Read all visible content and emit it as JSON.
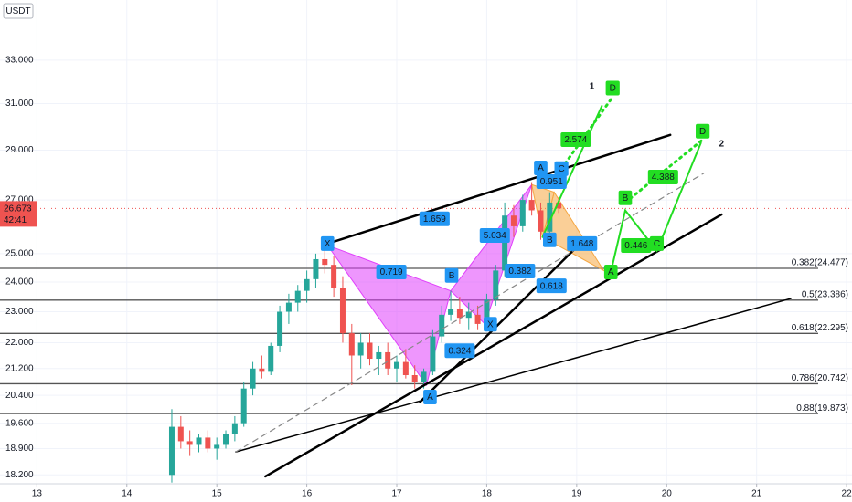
{
  "chart_data": {
    "type": "candlestick",
    "quote": "USDT",
    "log_scale": true,
    "grid": true,
    "up_color": "#26a69a",
    "down_color": "#ef5350",
    "x": [
      14.5,
      14.6,
      14.7,
      14.8,
      14.9,
      15.0,
      15.1,
      15.2,
      15.3,
      15.4,
      15.5,
      15.6,
      15.7,
      15.8,
      15.9,
      16.0,
      16.1,
      16.2,
      16.3,
      16.4,
      16.5,
      16.6,
      16.7,
      16.8,
      16.9,
      17.0,
      17.1,
      17.2,
      17.3,
      17.4,
      17.5,
      17.6,
      17.7,
      17.8,
      17.9,
      18.0,
      18.1,
      18.2,
      18.3,
      18.4,
      18.5,
      18.6,
      18.7,
      18.8
    ],
    "open": [
      18.2,
      19.5,
      19.1,
      19.0,
      19.2,
      18.9,
      19.0,
      19.3,
      19.6,
      20.6,
      21.2,
      21.1,
      21.9,
      23.0,
      23.3,
      23.7,
      24.1,
      24.8,
      24.6,
      23.8,
      22.3,
      21.6,
      22.0,
      21.5,
      21.7,
      21.2,
      21.4,
      21.0,
      20.8,
      21.1,
      22.2,
      22.9,
      23.1,
      22.8,
      22.9,
      22.6,
      23.4,
      24.4,
      26.4,
      26.0,
      27.0,
      26.6,
      25.8,
      26.9
    ],
    "high": [
      20.0,
      19.8,
      19.4,
      19.3,
      19.4,
      19.2,
      19.4,
      19.8,
      20.8,
      21.4,
      21.6,
      22.0,
      23.2,
      23.6,
      23.9,
      24.4,
      25.0,
      25.4,
      24.9,
      24.2,
      22.6,
      22.3,
      22.3,
      21.9,
      22.0,
      21.6,
      21.8,
      21.3,
      21.2,
      22.4,
      23.2,
      23.7,
      23.5,
      23.3,
      23.2,
      23.6,
      24.6,
      26.9,
      26.8,
      27.2,
      27.7,
      26.9,
      27.3,
      27.1
    ],
    "low": [
      18.0,
      18.9,
      18.7,
      18.8,
      18.8,
      18.6,
      18.9,
      19.1,
      19.5,
      20.4,
      20.9,
      21.0,
      21.7,
      22.6,
      23.0,
      23.3,
      23.8,
      24.3,
      23.5,
      22.0,
      20.7,
      21.2,
      21.3,
      21.0,
      21.0,
      20.8,
      20.9,
      20.6,
      20.6,
      21.0,
      22.0,
      22.7,
      22.6,
      22.4,
      22.4,
      22.4,
      23.2,
      24.2,
      25.6,
      25.8,
      26.4,
      25.5,
      25.6,
      26.5
    ],
    "close": [
      19.5,
      19.1,
      19.0,
      19.2,
      18.9,
      19.0,
      19.3,
      19.6,
      20.6,
      21.2,
      21.1,
      21.9,
      23.0,
      23.3,
      23.7,
      24.1,
      24.8,
      24.6,
      23.8,
      22.3,
      21.6,
      22.0,
      21.5,
      21.7,
      21.2,
      21.4,
      21.0,
      20.8,
      21.1,
      22.2,
      22.9,
      23.1,
      22.8,
      23.0,
      22.6,
      23.4,
      24.4,
      26.4,
      26.0,
      27.0,
      26.6,
      25.8,
      26.9,
      26.673
    ],
    "xlim": [
      12.59,
      22.06
    ],
    "xticks": [
      13,
      14,
      15,
      16,
      17,
      18,
      19,
      20,
      21,
      22
    ],
    "ylim": [
      17.97,
      35.97
    ],
    "yticks": [
      {
        "value": 33,
        "label": "33.000"
      },
      {
        "value": 31,
        "label": "31.000"
      },
      {
        "value": 29,
        "label": "29.000"
      },
      {
        "value": 27,
        "label": "27.000"
      },
      {
        "value": 25,
        "label": "25.000"
      },
      {
        "value": 24,
        "label": "24.000"
      },
      {
        "value": 23,
        "label": "23.000"
      },
      {
        "value": 22,
        "label": "22.000"
      },
      {
        "value": 21.2,
        "label": "21.200"
      },
      {
        "value": 20.4,
        "label": "20.400"
      },
      {
        "value": 19.6,
        "label": "19.600"
      },
      {
        "value": 18.9,
        "label": "18.900"
      },
      {
        "value": 18.2,
        "label": "18.200"
      }
    ],
    "last_price": {
      "value": 26.673,
      "timer": "42:41",
      "color": "#ef5350"
    },
    "levels": [
      {
        "value": 24.477,
        "label": "0.382(24.477)"
      },
      {
        "value": 23.386,
        "label": "0.5(23.386)"
      },
      {
        "value": 22.295,
        "label": "0.618(22.295)"
      },
      {
        "value": 20.742,
        "label": "0.786(20.742)"
      },
      {
        "value": 19.873,
        "label": "0.88(19.873)"
      }
    ],
    "patterns": [
      {
        "color": "#e040fb",
        "x": [
          16.23,
          17.33,
          17.6
        ],
        "y": [
          25.3,
          20.7,
          23.7
        ]
      },
      {
        "color": "#e040fb",
        "x": [
          17.6,
          17.98,
          18.5
        ],
        "y": [
          23.7,
          22.6,
          27.6
        ]
      },
      {
        "color": "#f5a742",
        "x": [
          18.5,
          18.62,
          18.75
        ],
        "y": [
          27.6,
          25.6,
          27.3
        ]
      },
      {
        "color": "#f5a742",
        "x": [
          18.62,
          18.75,
          19.3
        ],
        "y": [
          25.6,
          27.3,
          24.4
        ]
      }
    ],
    "trendlines": [
      {
        "color": "#000000",
        "width": 2.5,
        "dash": "none",
        "x": [
          16.23,
          20.04
        ],
        "y": [
          25.36,
          29.64
        ]
      },
      {
        "color": "#000000",
        "width": 2.5,
        "dash": "none",
        "x": [
          17.26,
          19.09
        ],
        "y": [
          20.21,
          25.53
        ]
      },
      {
        "color": "#000000",
        "width": 2.5,
        "dash": "none",
        "x": [
          15.54,
          20.61
        ],
        "y": [
          18.16,
          26.44
        ]
      },
      {
        "color": "#000000",
        "width": 1.5,
        "dash": "none",
        "x": [
          15.21,
          21.38
        ],
        "y": [
          18.81,
          23.44
        ]
      },
      {
        "color": "#888888",
        "width": 1.2,
        "dash": "6 5",
        "x": [
          15.21,
          20.41
        ],
        "y": [
          18.81,
          28.05
        ]
      },
      {
        "color": "#22dd22",
        "width": 2,
        "dash": "none",
        "x": [
          18.62,
          19.28
        ],
        "y": [
          25.6,
          30.9
        ]
      },
      {
        "color": "#22dd22",
        "width": 3,
        "dash": "2 5",
        "x": [
          18.83,
          19.4
        ],
        "y": [
          28.24,
          31.3
        ]
      },
      {
        "color": "#22dd22",
        "width": 2,
        "dash": "none",
        "x": [
          19.38,
          19.54,
          19.89,
          20.38
        ],
        "y": [
          24.35,
          26.6,
          25.1,
          29.3
        ]
      },
      {
        "color": "#22dd22",
        "width": 3,
        "dash": "2 5",
        "x": [
          19.54,
          20.42
        ],
        "y": [
          26.9,
          29.5
        ]
      }
    ],
    "annotations": [
      {
        "text": "1.659",
        "x": 17.42,
        "y": 26.28,
        "color": "#2196f3"
      },
      {
        "text": "0.719",
        "x": 16.94,
        "y": 24.35,
        "color": "#2196f3"
      },
      {
        "text": "5.034",
        "x": 18.09,
        "y": 25.66,
        "color": "#2196f3"
      },
      {
        "text": "0.382",
        "x": 18.37,
        "y": 24.38,
        "color": "#2196f3"
      },
      {
        "text": "0.618",
        "x": 18.72,
        "y": 23.87,
        "color": "#2196f3"
      },
      {
        "text": "0.324",
        "x": 17.7,
        "y": 21.75,
        "color": "#2196f3"
      },
      {
        "text": "0.951",
        "x": 18.72,
        "y": 27.72,
        "color": "#2196f3"
      },
      {
        "text": "1.648",
        "x": 19.06,
        "y": 25.36,
        "color": "#2196f3"
      },
      {
        "text": "2.574",
        "x": 18.99,
        "y": 29.44,
        "color": "#22dd22"
      },
      {
        "text": "4.388",
        "x": 19.96,
        "y": 27.9,
        "color": "#22dd22"
      },
      {
        "text": "0.446",
        "x": 19.66,
        "y": 25.29,
        "color": "#22dd22"
      }
    ],
    "point_labels": [
      {
        "text": "X",
        "x": 16.23,
        "y": 25.36,
        "color": "#2196f3"
      },
      {
        "text": "A",
        "x": 17.37,
        "y": 20.35,
        "color": "#2196f3"
      },
      {
        "text": "B",
        "x": 17.61,
        "y": 24.23,
        "color": "#2196f3"
      },
      {
        "text": "X",
        "x": 18.04,
        "y": 22.59,
        "color": "#2196f3"
      },
      {
        "text": "A",
        "x": 18.6,
        "y": 28.27,
        "color": "#2196f3"
      },
      {
        "text": "B",
        "x": 18.7,
        "y": 25.5,
        "color": "#2196f3"
      },
      {
        "text": "C",
        "x": 18.83,
        "y": 28.24,
        "color": "#2196f3"
      },
      {
        "text": "D",
        "x": 19.4,
        "y": 31.7,
        "color": "#22dd22"
      },
      {
        "text": "A",
        "x": 19.38,
        "y": 24.35,
        "color": "#22dd22"
      },
      {
        "text": "B",
        "x": 19.54,
        "y": 27.08,
        "color": "#22dd22"
      },
      {
        "text": "C",
        "x": 19.89,
        "y": 25.36,
        "color": "#22dd22"
      },
      {
        "text": "D",
        "x": 20.4,
        "y": 29.8,
        "color": "#22dd22"
      }
    ],
    "headings": [
      {
        "text": "1",
        "x": 19.17,
        "y": 31.77
      },
      {
        "text": "2",
        "x": 20.61,
        "y": 29.25
      }
    ]
  }
}
